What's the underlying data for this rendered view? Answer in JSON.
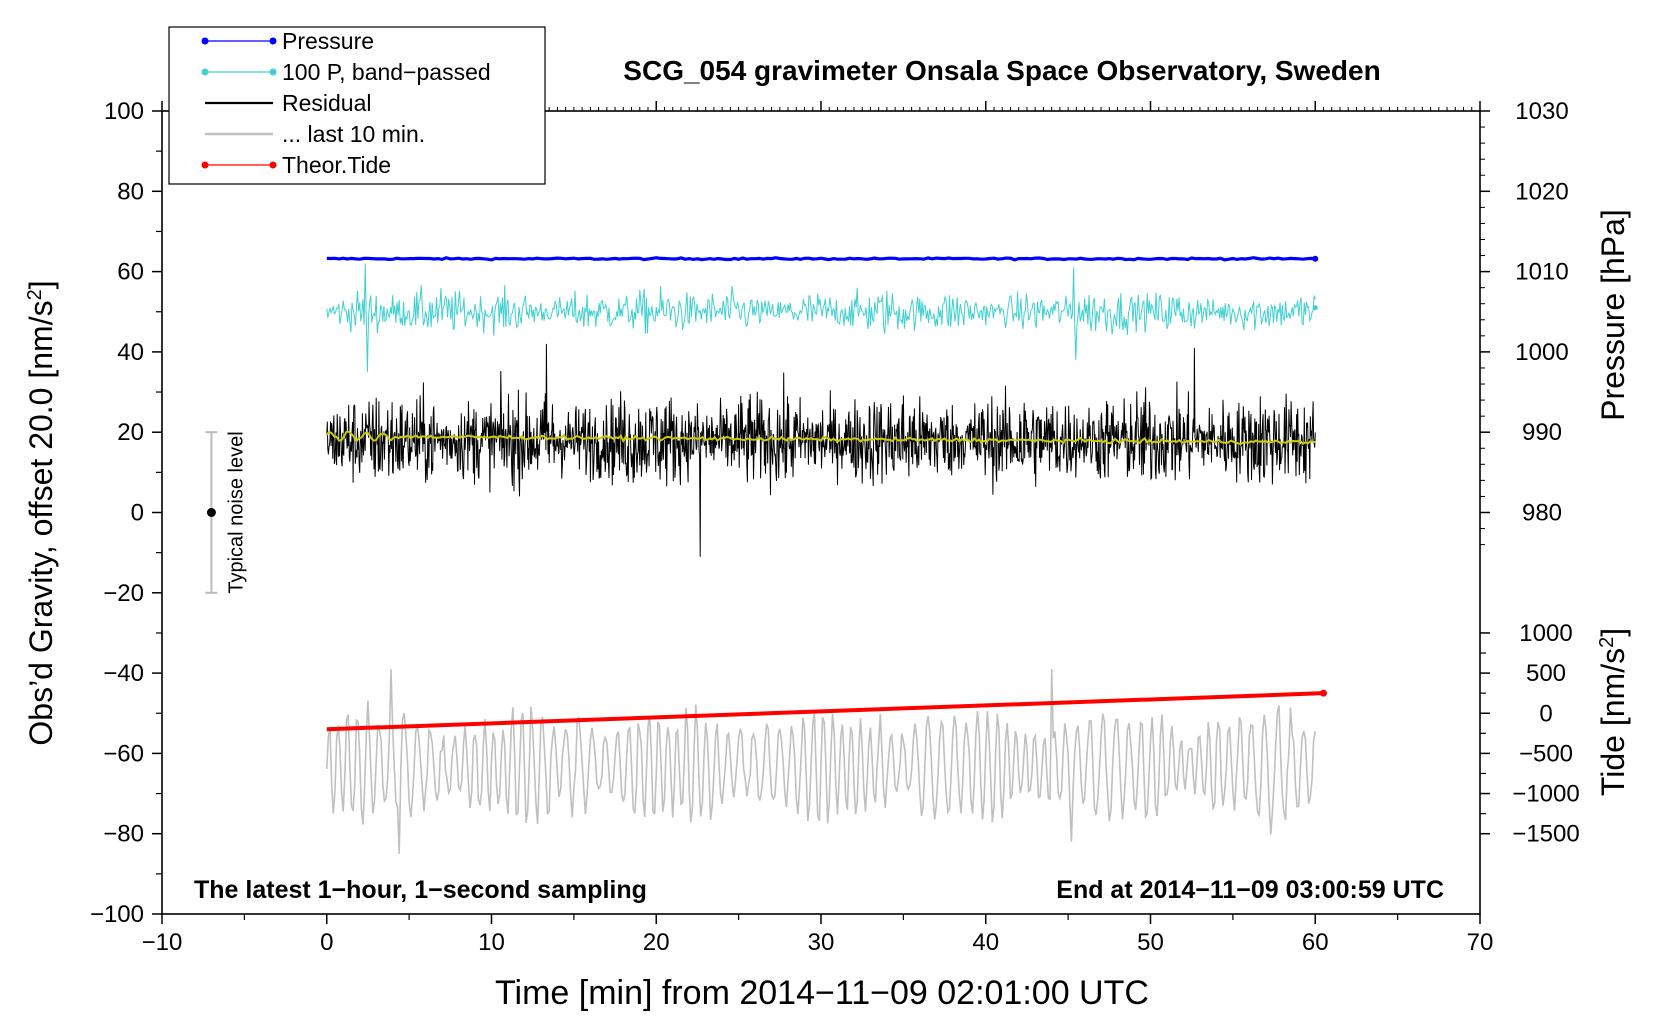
{
  "chart_data": {
    "type": "line",
    "title": "SCG_054 gravimeter Onsala Space Observatory, Sweden",
    "xlabel": "Time [min] from 2014−11−09 02:01:00 UTC",
    "ylabel_left": "Obs’d Gravity, offset 20.0 [nm/s",
    "ylabel_left_sup": "2",
    "ylabel_left_close": "]",
    "ylabel_right_top": "Pressure [hPa]",
    "ylabel_right_bottom": "Tide [nm/s",
    "ylabel_right_bottom_sup": "2",
    "ylabel_right_bottom_close": "]",
    "xlim": [
      -10,
      70
    ],
    "ylim": [
      -100,
      100
    ],
    "x_ticks": [
      -10,
      0,
      10,
      20,
      30,
      40,
      50,
      60,
      70
    ],
    "x_tick_labels": [
      "−10",
      "0",
      "10",
      "20",
      "30",
      "40",
      "50",
      "60",
      "70"
    ],
    "y_ticks": [
      -100,
      -80,
      -60,
      -40,
      -20,
      0,
      20,
      40,
      60,
      80,
      100
    ],
    "y_tick_labels": [
      "−100",
      "−80",
      "−60",
      "−40",
      "−20",
      "0",
      "20",
      "40",
      "60",
      "80",
      "100"
    ],
    "pressure_axis": {
      "ticks": [
        980,
        990,
        1000,
        1010,
        1020,
        1030
      ],
      "tick_labels": [
        "980",
        "990",
        "1000",
        "1010",
        "1020",
        "1030"
      ],
      "gravity_at_1000": 40,
      "gravity_per_hpa": 2
    },
    "tide_axis": {
      "ticks": [
        -1500,
        -1000,
        -500,
        0,
        500,
        1000
      ],
      "tick_labels": [
        "−1500",
        "−1000",
        "−500",
        "0",
        "500",
        "1000"
      ],
      "gravity_at_zero": -50,
      "gravity_per_unit": 0.02
    },
    "legend": {
      "position": "top-left",
      "entries": [
        {
          "label": "Pressure",
          "color": "#0000ff",
          "marker": true
        },
        {
          "label": "100 P, band−passed",
          "color": "#40d0d0",
          "marker": true
        },
        {
          "label": "Residual",
          "color": "#000000",
          "marker": false
        },
        {
          "label": "... last 10 min.",
          "color": "#c0c0c0",
          "marker": false
        },
        {
          "label": "Theor.Tide",
          "color": "#ff0000",
          "marker": true
        }
      ]
    },
    "annotations": {
      "bottom_left": "The latest 1−hour, 1−second sampling",
      "bottom_right": "End at 2014−11−09 03:00:59 UTC",
      "noise_label": "Typical noise level"
    },
    "noise_bar": {
      "x": -7,
      "center": 0,
      "low": -20,
      "high": 20
    },
    "series": [
      {
        "name": "Pressure",
        "color": "#0000ff",
        "x_range": [
          0,
          60
        ],
        "gravity_level": 63.2,
        "hpa_level": 1011.6
      },
      {
        "name": "100 P, band−passed",
        "color": "#40d0d0",
        "x_range": [
          0,
          60
        ],
        "center": 50,
        "amplitude": 4,
        "min": 35,
        "max": 62
      },
      {
        "name": "Residual",
        "color": "#000000",
        "x_range": [
          0,
          60
        ],
        "center": 18,
        "amplitude": 9,
        "min": -11,
        "max": 45
      },
      {
        "name": "Residual smoothed",
        "color": "#cccc00",
        "x_range": [
          0,
          60
        ],
        "start": 19,
        "end": 17.5
      },
      {
        "name": "... last 10 min.",
        "color": "#c0c0c0",
        "x_range": [
          0,
          60
        ],
        "center": -63,
        "amplitude": 10,
        "min": -85,
        "max": -39
      },
      {
        "name": "Theor.Tide",
        "color": "#ff0000",
        "x": [
          0,
          60.5
        ],
        "values": [
          -54,
          -45
        ],
        "tide_values": [
          -200,
          250
        ]
      }
    ]
  }
}
